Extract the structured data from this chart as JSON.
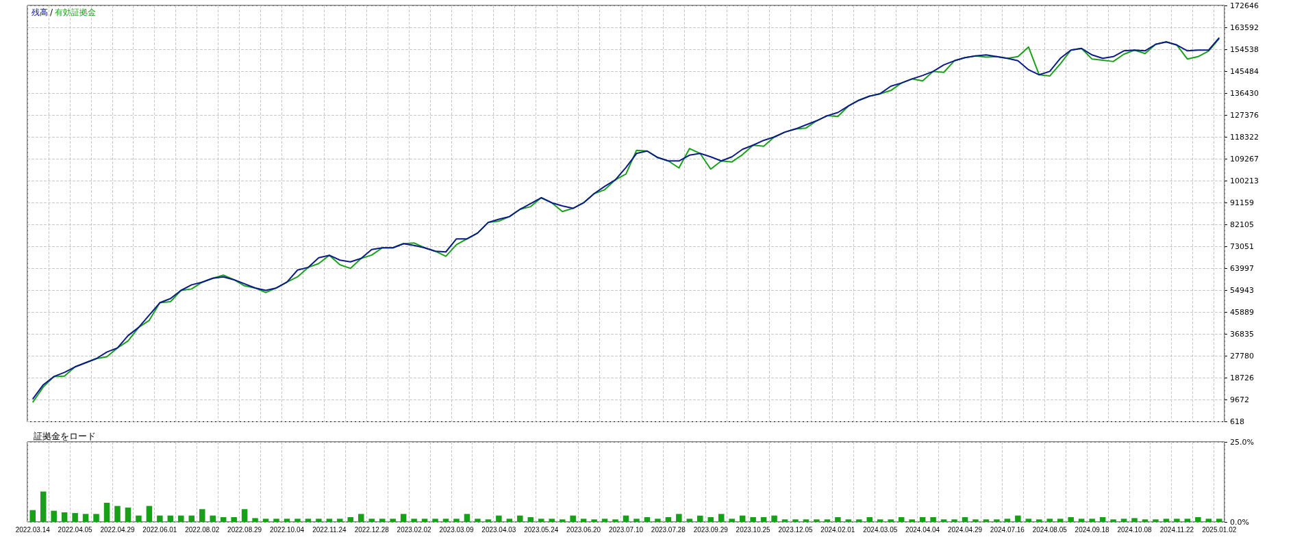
{
  "chart_data": [
    {
      "type": "line",
      "annotations": [
        "/"
      ],
      "legend": "top left",
      "grid": true,
      "line_style": "solid",
      "marker": "none",
      "tick_labels": "y",
      "categories": [
        "2022.03.14",
        null,
        null,
        null,
        "2022.04.05",
        null,
        null,
        null,
        "2022.04.29",
        null,
        null,
        null,
        "2022.06.01",
        null,
        null,
        null,
        "2022.08.02",
        null,
        null,
        null,
        "2022.08.29",
        null,
        null,
        null,
        "2022.10.04",
        null,
        null,
        null,
        "2022.11.24",
        null,
        null,
        null,
        "2022.12.28",
        null,
        null,
        null,
        "2023.02.02",
        null,
        null,
        null,
        "2023.03.09",
        null,
        null,
        null,
        "2023.04.03",
        null,
        null,
        null,
        "2023.05.24",
        null,
        null,
        null,
        "2023.06.20",
        null,
        null,
        null,
        "2023.07.10",
        null,
        null,
        null,
        "2023.07.28",
        null,
        null,
        null,
        "2023.09.29",
        null,
        null,
        null,
        "2023.10.25",
        null,
        null,
        null,
        "2023.12.05",
        null,
        null,
        null,
        "2024.02.01",
        null,
        null,
        null,
        "2024.03.05",
        null,
        null,
        null,
        "2024.04.04",
        null,
        null,
        null,
        "2024.04.29",
        null,
        null,
        null,
        "2024.07.16",
        null,
        null,
        null,
        "2024.08.05",
        null,
        null,
        null,
        "2024.09.18",
        null,
        null,
        null,
        "2024.10.08",
        null,
        null,
        null,
        "2024.11.22",
        null,
        null,
        null,
        "2025.01.02"
      ],
      "ylim": [
        618,
        172646
      ],
      "yticks": [
        618,
        9672,
        18726,
        27780,
        36835,
        45889,
        54943,
        63997,
        73051,
        82105,
        91159,
        100213,
        109267,
        118322,
        127376,
        136430,
        145484,
        154538,
        163592,
        172646
      ],
      "series": [
        {
          "name": "有効証拠金",
          "color": "#18a018",
          "values": [
            8600,
            15000,
            19300,
            19500,
            23300,
            25000,
            26700,
            27500,
            31100,
            34000,
            39600,
            42500,
            49800,
            50200,
            54900,
            55500,
            58300,
            59900,
            61200,
            59300,
            56800,
            55900,
            54000,
            55900,
            58300,
            60500,
            64400,
            66000,
            69400,
            65500,
            64000,
            68100,
            69500,
            72500,
            72500,
            74200,
            74500,
            72500,
            71100,
            69000,
            73800,
            76200,
            78600,
            83000,
            83500,
            85400,
            88400,
            89500,
            93200,
            91100,
            87500,
            88800,
            91100,
            94900,
            96500,
            100600,
            103000,
            112800,
            112500,
            109800,
            108400,
            105500,
            113500,
            111500,
            105000,
            108400,
            108000,
            111000,
            114900,
            114500,
            118300,
            120300,
            121600,
            122000,
            125000,
            127100,
            126800,
            131100,
            133500,
            135200,
            136200,
            137500,
            140600,
            142300,
            141500,
            145400,
            145000,
            149800,
            151100,
            151800,
            151300,
            151500,
            150800,
            151500,
            155500,
            144000,
            143500,
            148500,
            154200,
            154900,
            150500,
            150000,
            149500,
            152500,
            154200,
            152800,
            156600,
            157600,
            156300,
            150500,
            151500,
            153800,
            159000
          ]
        },
        {
          "name": "残高",
          "color": "#0a1a8c",
          "values": [
            10000,
            15900,
            19300,
            21000,
            23300,
            25000,
            26700,
            29400,
            31100,
            36200,
            39600,
            44700,
            49800,
            51500,
            54900,
            57200,
            58300,
            59900,
            60500,
            59300,
            57600,
            55900,
            54900,
            55900,
            58300,
            63300,
            64400,
            68400,
            69400,
            67400,
            66700,
            68100,
            71800,
            72500,
            72500,
            74200,
            73500,
            72500,
            71100,
            70800,
            76200,
            76200,
            78600,
            83000,
            84300,
            85400,
            88400,
            90800,
            93200,
            91100,
            89800,
            88800,
            91100,
            94900,
            97900,
            100600,
            105700,
            111500,
            112500,
            109800,
            108400,
            108400,
            110800,
            111500,
            110100,
            108400,
            110100,
            113200,
            114900,
            116900,
            118300,
            120300,
            121600,
            123300,
            125000,
            127100,
            128400,
            131100,
            133500,
            135200,
            136200,
            139300,
            140600,
            142300,
            143700,
            145400,
            148100,
            149800,
            151100,
            151800,
            152200,
            151500,
            150800,
            149800,
            146100,
            144000,
            145400,
            150800,
            154200,
            154900,
            152200,
            150800,
            151500,
            153900,
            154200,
            153900,
            156600,
            157600,
            156300,
            153900,
            154200,
            154200,
            159300
          ]
        }
      ]
    },
    {
      "type": "bar",
      "title": "証拠金をロード",
      "grid": true,
      "color": "#18a018",
      "categories": [
        "2022.03.14",
        null,
        null,
        null,
        "2022.04.05",
        null,
        null,
        null,
        "2022.04.29",
        null,
        null,
        null,
        "2022.06.01",
        null,
        null,
        null,
        "2022.08.02",
        null,
        null,
        null,
        "2022.08.29",
        null,
        null,
        null,
        "2022.10.04",
        null,
        null,
        null,
        "2022.11.24",
        null,
        null,
        null,
        "2022.12.28",
        null,
        null,
        null,
        "2023.02.02",
        null,
        null,
        null,
        "2023.03.09",
        null,
        null,
        null,
        "2023.04.03",
        null,
        null,
        null,
        "2023.05.24",
        null,
        null,
        null,
        "2023.06.20",
        null,
        null,
        null,
        "2023.07.10",
        null,
        null,
        null,
        "2023.07.28",
        null,
        null,
        null,
        "2023.09.29",
        null,
        null,
        null,
        "2023.10.25",
        null,
        null,
        null,
        "2023.12.05",
        null,
        null,
        null,
        "2024.02.01",
        null,
        null,
        null,
        "2024.03.05",
        null,
        null,
        null,
        "2024.04.04",
        null,
        null,
        null,
        "2024.04.29",
        null,
        null,
        null,
        "2024.07.16",
        null,
        null,
        null,
        "2024.08.05",
        null,
        null,
        null,
        "2024.09.18",
        null,
        null,
        null,
        "2024.10.08",
        null,
        null,
        null,
        "2024.11.22",
        null,
        null,
        null,
        "2025.01.02"
      ],
      "ylim": [
        0,
        25
      ],
      "yticks": [
        {
          "value": 0,
          "label": "0.0%"
        },
        {
          "value": 25,
          "label": "25.0%"
        }
      ],
      "values": [
        3.7,
        9.5,
        3.5,
        3.0,
        2.8,
        2.5,
        2.5,
        6,
        5,
        4.5,
        2,
        5,
        2,
        2,
        2,
        2,
        4,
        2,
        1.5,
        1.5,
        4,
        1.2,
        1,
        1,
        1,
        1,
        1,
        1,
        1,
        1,
        1.5,
        2.5,
        1,
        1,
        1,
        2.5,
        1,
        1,
        1,
        1,
        1,
        2.5,
        1,
        0.8,
        2,
        1,
        2,
        1.5,
        1,
        1,
        0.8,
        2,
        1,
        0.8,
        1,
        0.8,
        2,
        1,
        1.5,
        1,
        1.5,
        2.5,
        1,
        2,
        1.5,
        2.5,
        1,
        2,
        1.5,
        1.5,
        2,
        0.8,
        0.8,
        0.8,
        0.8,
        0.8,
        1.5,
        0.8,
        0.8,
        1.5,
        0.8,
        0.8,
        1.5,
        0.8,
        1.5,
        1.5,
        0.8,
        0.8,
        1.5,
        0.8,
        0.8,
        0.8,
        1,
        2,
        1,
        0.8,
        1,
        1,
        1.5,
        1,
        1,
        1.5,
        0.8,
        1,
        1.2,
        0.8,
        0.8,
        1,
        1,
        1,
        1.5,
        1,
        1
      ]
    }
  ]
}
